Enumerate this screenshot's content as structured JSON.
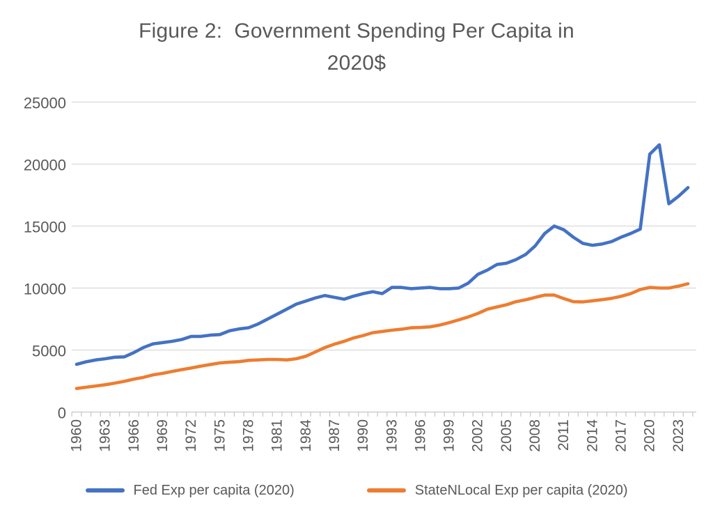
{
  "title": {
    "lines": [
      "Figure 2:  Government Spending Per Capita in",
      "2020$"
    ],
    "full": "Figure 2:  Government Spending Per Capita in 2020$"
  },
  "chart_data": {
    "type": "line",
    "title": "Figure 2:  Government Spending Per Capita in 2020$",
    "xlabel": "",
    "ylabel": "",
    "ylim": [
      0,
      25000
    ],
    "yticks": [
      0,
      5000,
      10000,
      15000,
      20000,
      25000
    ],
    "ytick_labels": [
      "0",
      "5000",
      "10000",
      "15000",
      "20000",
      "25000"
    ],
    "x": [
      1960,
      1961,
      1962,
      1963,
      1964,
      1965,
      1966,
      1967,
      1968,
      1969,
      1970,
      1971,
      1972,
      1973,
      1974,
      1975,
      1976,
      1977,
      1978,
      1979,
      1980,
      1981,
      1982,
      1983,
      1984,
      1985,
      1986,
      1987,
      1988,
      1989,
      1990,
      1991,
      1992,
      1993,
      1994,
      1995,
      1996,
      1997,
      1998,
      1999,
      2000,
      2001,
      2002,
      2003,
      2004,
      2005,
      2006,
      2007,
      2008,
      2009,
      2010,
      2011,
      2012,
      2013,
      2014,
      2015,
      2016,
      2017,
      2018,
      2019,
      2020,
      2021,
      2022,
      2023,
      2024
    ],
    "xtick_label_years": [
      1960,
      1963,
      1966,
      1969,
      1972,
      1975,
      1978,
      1981,
      1984,
      1987,
      1990,
      1993,
      1996,
      1999,
      2002,
      2005,
      2008,
      2011,
      2014,
      2017,
      2020,
      2023
    ],
    "grid": "horizontal",
    "gridline_color": "#D9D9D9",
    "axis_line_color": "#C6C6C6",
    "axis_text_color": "#595959",
    "legend_position": "bottom",
    "series": [
      {
        "name": "Fed Exp per capita (2020)",
        "key": "fed-exp-line",
        "color": "#4472C4",
        "values": [
          3850,
          4050,
          4200,
          4300,
          4420,
          4450,
          4800,
          5200,
          5500,
          5600,
          5700,
          5850,
          6100,
          6100,
          6200,
          6250,
          6550,
          6700,
          6800,
          7100,
          7500,
          7900,
          8300,
          8700,
          8950,
          9200,
          9400,
          9250,
          9100,
          9350,
          9550,
          9700,
          9550,
          10050,
          10050,
          9950,
          10000,
          10050,
          9950,
          9950,
          10000,
          10400,
          11100,
          11450,
          11900,
          12000,
          12300,
          12700,
          13400,
          14400,
          15000,
          14700,
          14100,
          13600,
          13450,
          13550,
          13750,
          14100,
          14400,
          14750,
          20800,
          21550,
          16800,
          17400,
          18100
        ]
      },
      {
        "name": "StateNLocal Exp per capita (2020)",
        "key": "statenlocal-exp-line",
        "color": "#ED7D31",
        "values": [
          1900,
          2000,
          2100,
          2200,
          2330,
          2480,
          2650,
          2800,
          3000,
          3120,
          3270,
          3420,
          3550,
          3700,
          3830,
          3960,
          4020,
          4060,
          4170,
          4200,
          4240,
          4240,
          4200,
          4300,
          4500,
          4850,
          5200,
          5480,
          5700,
          5980,
          6170,
          6400,
          6500,
          6600,
          6680,
          6790,
          6820,
          6870,
          7010,
          7210,
          7430,
          7670,
          7950,
          8290,
          8480,
          8650,
          8900,
          9050,
          9250,
          9430,
          9430,
          9150,
          8900,
          8880,
          8970,
          9060,
          9170,
          9330,
          9550,
          9880,
          10050,
          10000,
          10000,
          10150,
          10350
        ]
      }
    ]
  }
}
